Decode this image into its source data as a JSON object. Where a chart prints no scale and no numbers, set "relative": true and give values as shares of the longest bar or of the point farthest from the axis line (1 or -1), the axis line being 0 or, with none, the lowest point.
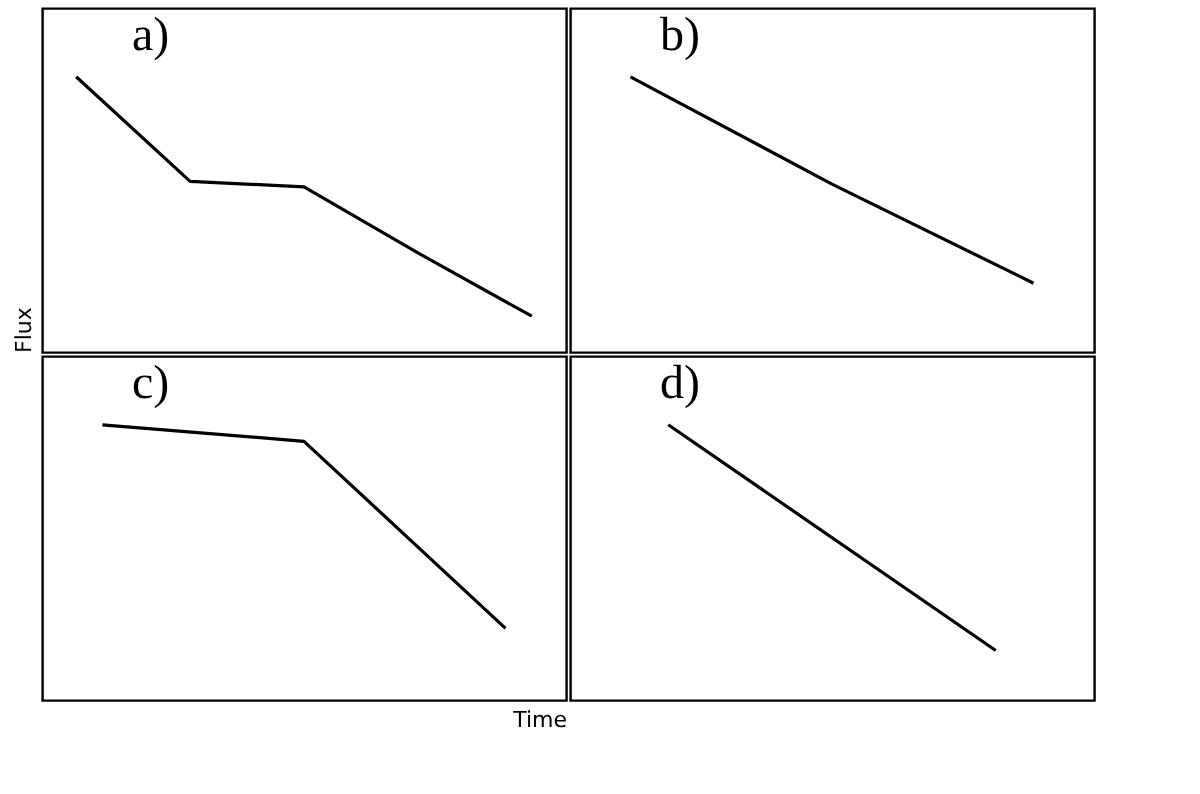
{
  "chart_data": [
    {
      "type": "line",
      "title": "a)",
      "ylabel": "Flux",
      "relative": true,
      "tick_labels": false,
      "categories": [
        null,
        null,
        null,
        null,
        null
      ],
      "series": [
        {
          "color": "#000000",
          "values": [
            1,
            0.62,
            0.6,
            0.36,
            0.13
          ]
        }
      ]
    },
    {
      "type": "line",
      "title": "b)",
      "relative": true,
      "tick_labels": false,
      "categories": [
        null,
        null,
        null
      ],
      "series": [
        {
          "color": "#000000",
          "values": [
            1,
            0.61,
            0.25
          ]
        }
      ]
    },
    {
      "type": "line",
      "title": "c)",
      "xlabel": "Time",
      "relative": true,
      "tick_labels": false,
      "categories": [
        null,
        null,
        null
      ],
      "series": [
        {
          "color": "#000000",
          "values": [
            1,
            0.94,
            0.26
          ]
        }
      ]
    },
    {
      "type": "line",
      "title": "d)",
      "relative": true,
      "tick_labels": false,
      "categories": [
        null,
        null
      ],
      "series": [
        {
          "color": "#000000",
          "values": [
            1,
            0.18
          ]
        }
      ]
    }
  ]
}
